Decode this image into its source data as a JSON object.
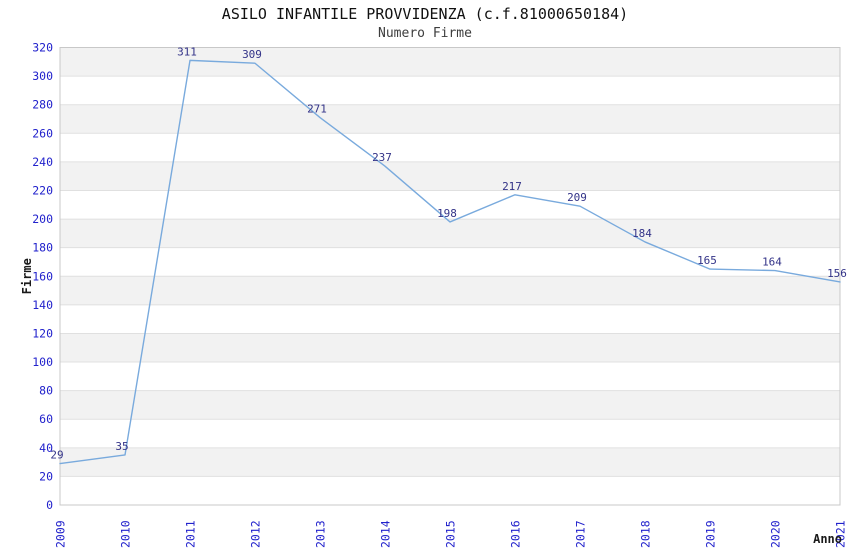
{
  "header": {
    "title": "ASILO INFANTILE PROVVIDENZA (c.f.81000650184)",
    "subtitle": "Numero Firme"
  },
  "chart_data": {
    "type": "line",
    "title": "ASILO INFANTILE PROVVIDENZA (c.f.81000650184)",
    "subtitle": "Numero Firme",
    "categories": [
      "2009",
      "2010",
      "2011",
      "2012",
      "2013",
      "2014",
      "2015",
      "2016",
      "2017",
      "2018",
      "2019",
      "2020",
      "2021"
    ],
    "values": [
      29,
      35,
      311,
      309,
      271,
      237,
      198,
      217,
      209,
      184,
      165,
      164,
      156
    ],
    "xlabel": "Anno",
    "ylabel": "Firme",
    "ylim": [
      0,
      320
    ],
    "ytick_step": 20,
    "grid": "alternating horizontal bands every 20 units with light gridlines",
    "legend": "none",
    "markers": "none",
    "data_labels": true,
    "x_tick_rotation": -90,
    "colors": {
      "line": "#79aadd",
      "tick_label": "#2222cc",
      "data_label": "#333388",
      "band": "#f2f2f2",
      "grid_line": "#e0e0e0",
      "plot_border": "#c8c8c8",
      "axis_title": "#1a1a1a",
      "title": "#111111",
      "subtitle": "#3d3d3d",
      "background": "#ffffff"
    }
  }
}
